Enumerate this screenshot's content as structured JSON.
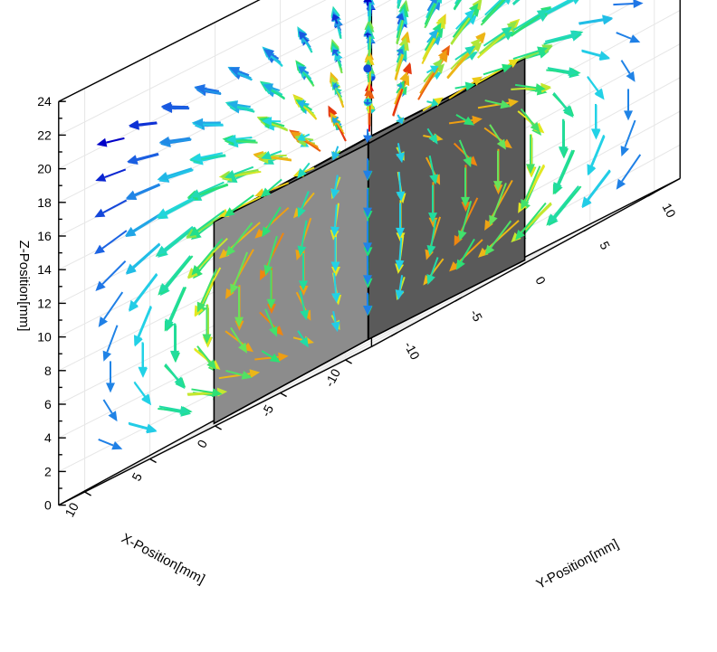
{
  "chart_data": {
    "type": "3d-vector-field",
    "title": "",
    "xlabel": "X-Position[mm]",
    "ylabel": "Y-Position[mm]",
    "zlabel": "Z-Position[mm]",
    "x_ticks": [
      "-10",
      "-5",
      "0",
      "5",
      "10"
    ],
    "y_ticks": [
      "-10",
      "-5",
      "0",
      "5",
      "10"
    ],
    "z_ticks": [
      "0",
      "2",
      "4",
      "6",
      "8",
      "10",
      "12",
      "14",
      "16",
      "18",
      "20",
      "22",
      "24"
    ],
    "xlim": [
      -12,
      12
    ],
    "ylim": [
      -12,
      12
    ],
    "zlim": [
      0,
      24
    ],
    "grid": true,
    "magnet": {
      "description": "solid cube",
      "x_range": [
        -6,
        6
      ],
      "y_range": [
        -6,
        6
      ],
      "z_range": [
        0,
        12
      ],
      "face_color_front": "#8c8c8c",
      "face_color_side": "#5a5a5a",
      "face_color_top": "#6e6e6e"
    },
    "vectors": {
      "field_model": "dipole (magnetized +z)",
      "dipole_center": [
        0,
        0,
        6
      ],
      "grid_x": [
        -10,
        -7.5,
        -5,
        -2.5,
        0,
        2.5,
        5,
        7.5,
        10
      ],
      "grid_y": [
        -10,
        -7.5,
        -5,
        -2.5,
        0,
        2.5,
        5,
        7.5,
        10
      ],
      "grid_z": [
        2,
        4,
        6,
        8,
        10,
        12,
        14,
        16,
        18,
        20
      ],
      "colormap": [
        "#0000c8",
        "#1f6fe6",
        "#22d4e6",
        "#22e07a",
        "#e8e81e",
        "#f08c10",
        "#e01010"
      ],
      "colormap_quantity": "field magnitude (low → high)"
    }
  }
}
